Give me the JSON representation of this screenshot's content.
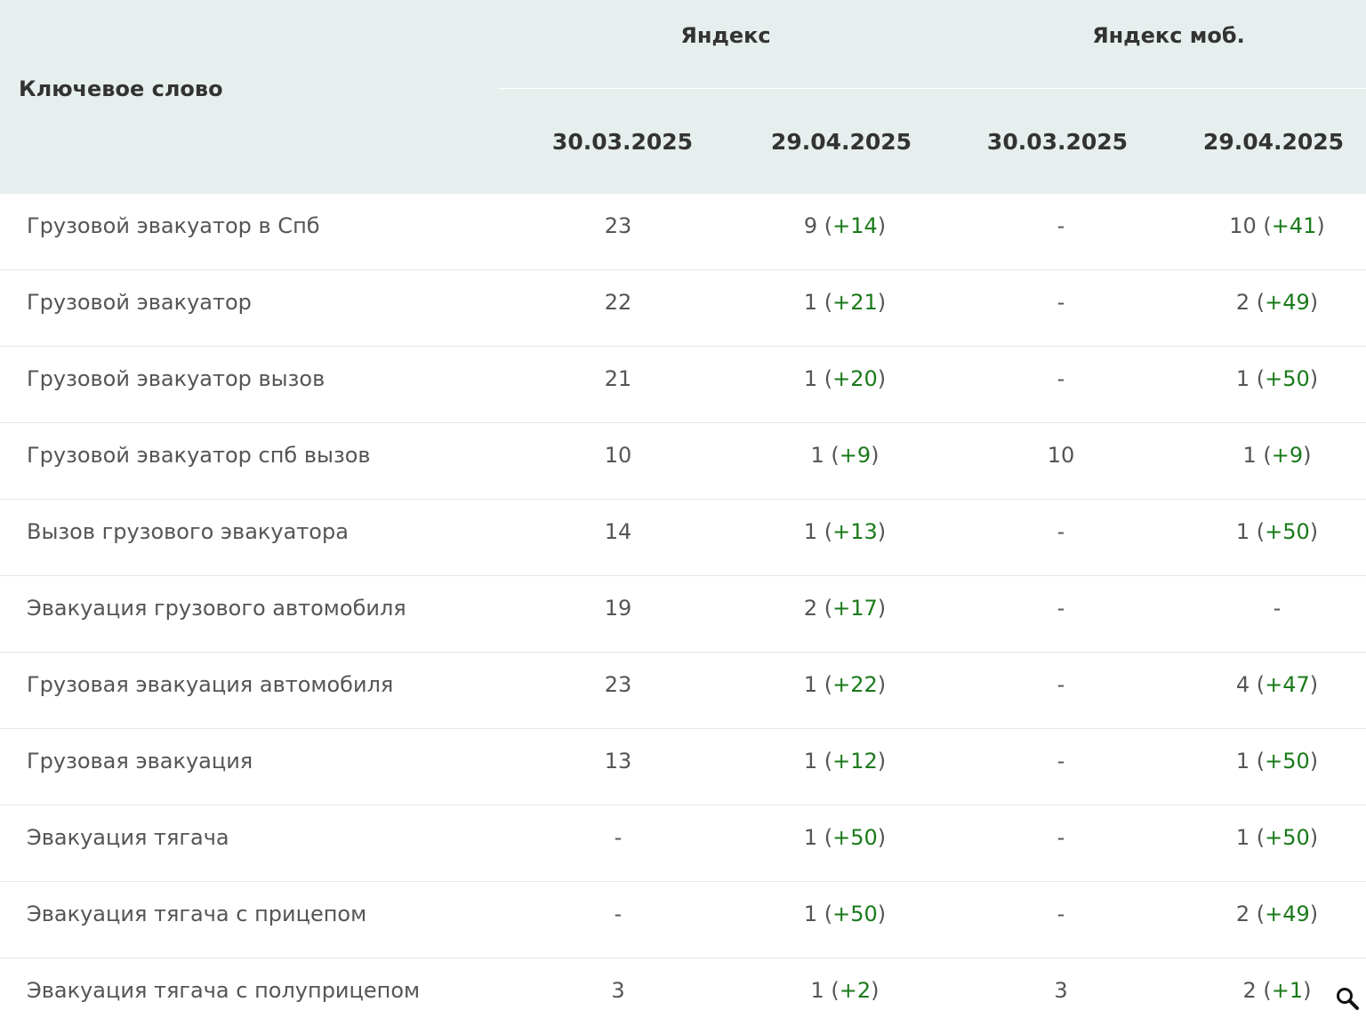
{
  "header": {
    "keyword": "Ключевое слово",
    "groups": [
      "Яндекс",
      "Яндекс моб."
    ],
    "dates": [
      "30.03.2025",
      "29.04.2025",
      "30.03.2025",
      "29.04.2025"
    ]
  },
  "rows": [
    {
      "keyword": "Грузовой эвакуатор в Спб",
      "cells": [
        {
          "v": "23"
        },
        {
          "v": "9",
          "d": "+14"
        },
        {
          "v": "-"
        },
        {
          "v": "10",
          "d": "+41"
        }
      ]
    },
    {
      "keyword": "Грузовой эвакуатор",
      "cells": [
        {
          "v": "22"
        },
        {
          "v": "1",
          "d": "+21"
        },
        {
          "v": "-"
        },
        {
          "v": "2",
          "d": "+49"
        }
      ]
    },
    {
      "keyword": "Грузовой эвакуатор вызов",
      "cells": [
        {
          "v": "21"
        },
        {
          "v": "1",
          "d": "+20"
        },
        {
          "v": "-"
        },
        {
          "v": "1",
          "d": "+50"
        }
      ]
    },
    {
      "keyword": "Грузовой эвакуатор спб вызов",
      "cells": [
        {
          "v": "10"
        },
        {
          "v": "1",
          "d": "+9"
        },
        {
          "v": "10"
        },
        {
          "v": "1",
          "d": "+9"
        }
      ]
    },
    {
      "keyword": "Вызов грузового эвакуатора",
      "cells": [
        {
          "v": "14"
        },
        {
          "v": "1",
          "d": "+13"
        },
        {
          "v": "-"
        },
        {
          "v": "1",
          "d": "+50"
        }
      ]
    },
    {
      "keyword": "Эвакуация грузового автомобиля",
      "cells": [
        {
          "v": "19"
        },
        {
          "v": "2",
          "d": "+17"
        },
        {
          "v": "-"
        },
        {
          "v": "-"
        }
      ]
    },
    {
      "keyword": "Грузовая эвакуация автомобиля",
      "cells": [
        {
          "v": "23"
        },
        {
          "v": "1",
          "d": "+22"
        },
        {
          "v": "-"
        },
        {
          "v": "4",
          "d": "+47"
        }
      ]
    },
    {
      "keyword": "Грузовая эвакуация",
      "cells": [
        {
          "v": "13"
        },
        {
          "v": "1",
          "d": "+12"
        },
        {
          "v": "-"
        },
        {
          "v": "1",
          "d": "+50"
        }
      ]
    },
    {
      "keyword": "Эвакуация тягача",
      "cells": [
        {
          "v": "-"
        },
        {
          "v": "1",
          "d": "+50"
        },
        {
          "v": "-"
        },
        {
          "v": "1",
          "d": "+50"
        }
      ]
    },
    {
      "keyword": "Эвакуация тягача с прицепом",
      "cells": [
        {
          "v": "-"
        },
        {
          "v": "1",
          "d": "+50"
        },
        {
          "v": "-"
        },
        {
          "v": "2",
          "d": "+49"
        }
      ]
    },
    {
      "keyword": "Эвакуация тягача с полуприцепом",
      "cells": [
        {
          "v": "3"
        },
        {
          "v": "1",
          "d": "+2"
        },
        {
          "v": "3"
        },
        {
          "v": "2",
          "d": "+1"
        }
      ]
    }
  ],
  "icons": {
    "zoom": "magnifier-icon"
  },
  "colors": {
    "header_bg": "#e7eeee",
    "delta": "#1a7a1a",
    "text": "#555555"
  }
}
